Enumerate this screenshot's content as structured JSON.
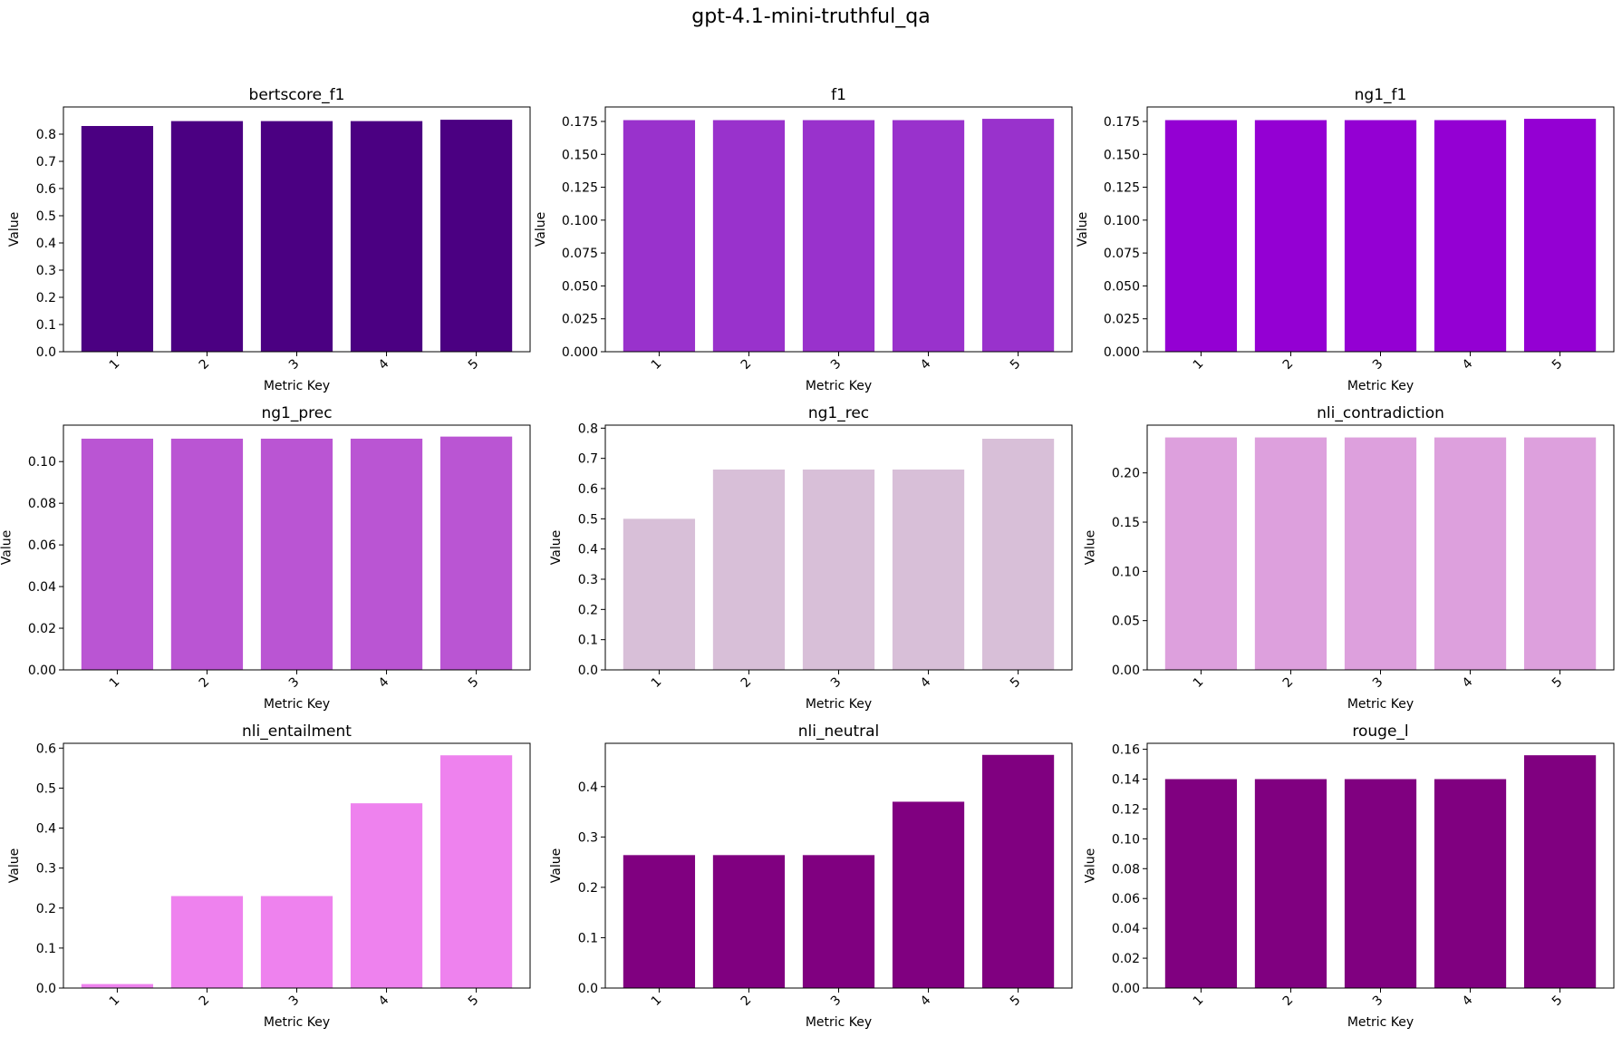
{
  "figure": {
    "title": "gpt-4.1-mini-truthful_qa"
  },
  "chart_data": [
    {
      "type": "bar",
      "title": "bertscore_f1",
      "xlabel": "Metric Key",
      "ylabel": "Value",
      "categories": [
        "1",
        "2",
        "3",
        "4",
        "5"
      ],
      "values": [
        0.83,
        0.848,
        0.848,
        0.848,
        0.853
      ],
      "ylim": [
        0,
        0.9
      ],
      "yticks": [
        "0.0",
        "0.1",
        "0.2",
        "0.3",
        "0.4",
        "0.5",
        "0.6",
        "0.7",
        "0.8"
      ],
      "ytick_values": [
        0,
        0.1,
        0.2,
        0.3,
        0.4,
        0.5,
        0.6,
        0.7,
        0.8
      ],
      "color": "#4b0082"
    },
    {
      "type": "bar",
      "title": "f1",
      "xlabel": "Metric Key",
      "ylabel": "Value",
      "categories": [
        "1",
        "2",
        "3",
        "4",
        "5"
      ],
      "values": [
        0.176,
        0.176,
        0.176,
        0.176,
        0.177
      ],
      "ylim": [
        0,
        0.186
      ],
      "yticks": [
        "0.000",
        "0.025",
        "0.050",
        "0.075",
        "0.100",
        "0.125",
        "0.150",
        "0.175"
      ],
      "ytick_values": [
        0,
        0.025,
        0.05,
        0.075,
        0.1,
        0.125,
        0.15,
        0.175
      ],
      "color": "#9932cc"
    },
    {
      "type": "bar",
      "title": "ng1_f1",
      "xlabel": "Metric Key",
      "ylabel": "Value",
      "categories": [
        "1",
        "2",
        "3",
        "4",
        "5"
      ],
      "values": [
        0.176,
        0.176,
        0.176,
        0.176,
        0.177
      ],
      "ylim": [
        0,
        0.186
      ],
      "yticks": [
        "0.000",
        "0.025",
        "0.050",
        "0.075",
        "0.100",
        "0.125",
        "0.150",
        "0.175"
      ],
      "ytick_values": [
        0,
        0.025,
        0.05,
        0.075,
        0.1,
        0.125,
        0.15,
        0.175
      ],
      "color": "#9400d3"
    },
    {
      "type": "bar",
      "title": "ng1_prec",
      "xlabel": "Metric Key",
      "ylabel": "Value",
      "categories": [
        "1",
        "2",
        "3",
        "4",
        "5"
      ],
      "values": [
        0.111,
        0.111,
        0.111,
        0.111,
        0.112
      ],
      "ylim": [
        0,
        0.1175
      ],
      "yticks": [
        "0.00",
        "0.02",
        "0.04",
        "0.06",
        "0.08",
        "0.10"
      ],
      "ytick_values": [
        0,
        0.02,
        0.04,
        0.06,
        0.08,
        0.1
      ],
      "color": "#ba55d3"
    },
    {
      "type": "bar",
      "title": "ng1_rec",
      "xlabel": "Metric Key",
      "ylabel": "Value",
      "categories": [
        "1",
        "2",
        "3",
        "4",
        "5"
      ],
      "values": [
        0.5,
        0.663,
        0.663,
        0.663,
        0.765
      ],
      "ylim": [
        0,
        0.81
      ],
      "yticks": [
        "0.0",
        "0.1",
        "0.2",
        "0.3",
        "0.4",
        "0.5",
        "0.6",
        "0.7",
        "0.8"
      ],
      "ytick_values": [
        0,
        0.1,
        0.2,
        0.3,
        0.4,
        0.5,
        0.6,
        0.7,
        0.8
      ],
      "color": "#d8bfd8"
    },
    {
      "type": "bar",
      "title": "nli_contradiction",
      "xlabel": "Metric Key",
      "ylabel": "Value",
      "categories": [
        "1",
        "2",
        "3",
        "4",
        "5"
      ],
      "values": [
        0.236,
        0.236,
        0.236,
        0.236,
        0.236
      ],
      "ylim": [
        0,
        0.2485
      ],
      "yticks": [
        "0.00",
        "0.05",
        "0.10",
        "0.15",
        "0.20"
      ],
      "ytick_values": [
        0,
        0.05,
        0.1,
        0.15,
        0.2
      ],
      "color": "#dda0dd"
    },
    {
      "type": "bar",
      "title": "nli_entailment",
      "xlabel": "Metric Key",
      "ylabel": "Value",
      "categories": [
        "1",
        "2",
        "3",
        "4",
        "5"
      ],
      "values": [
        0.01,
        0.23,
        0.23,
        0.462,
        0.582
      ],
      "ylim": [
        0,
        0.612
      ],
      "yticks": [
        "0.0",
        "0.1",
        "0.2",
        "0.3",
        "0.4",
        "0.5",
        "0.6"
      ],
      "ytick_values": [
        0,
        0.1,
        0.2,
        0.3,
        0.4,
        0.5,
        0.6
      ],
      "color": "#ee82ee"
    },
    {
      "type": "bar",
      "title": "nli_neutral",
      "xlabel": "Metric Key",
      "ylabel": "Value",
      "categories": [
        "1",
        "2",
        "3",
        "4",
        "5"
      ],
      "values": [
        0.264,
        0.264,
        0.264,
        0.37,
        0.463
      ],
      "ylim": [
        0,
        0.486
      ],
      "yticks": [
        "0.0",
        "0.1",
        "0.2",
        "0.3",
        "0.4"
      ],
      "ytick_values": [
        0,
        0.1,
        0.2,
        0.3,
        0.4
      ],
      "color": "#800080"
    },
    {
      "type": "bar",
      "title": "rouge_l",
      "xlabel": "Metric Key",
      "ylabel": "Value",
      "categories": [
        "1",
        "2",
        "3",
        "4",
        "5"
      ],
      "values": [
        0.14,
        0.14,
        0.14,
        0.14,
        0.156
      ],
      "ylim": [
        0,
        0.164
      ],
      "yticks": [
        "0.00",
        "0.02",
        "0.04",
        "0.06",
        "0.08",
        "0.10",
        "0.12",
        "0.14",
        "0.16"
      ],
      "ytick_values": [
        0,
        0.02,
        0.04,
        0.06,
        0.08,
        0.1,
        0.12,
        0.14,
        0.16
      ],
      "color": "#800080"
    }
  ]
}
